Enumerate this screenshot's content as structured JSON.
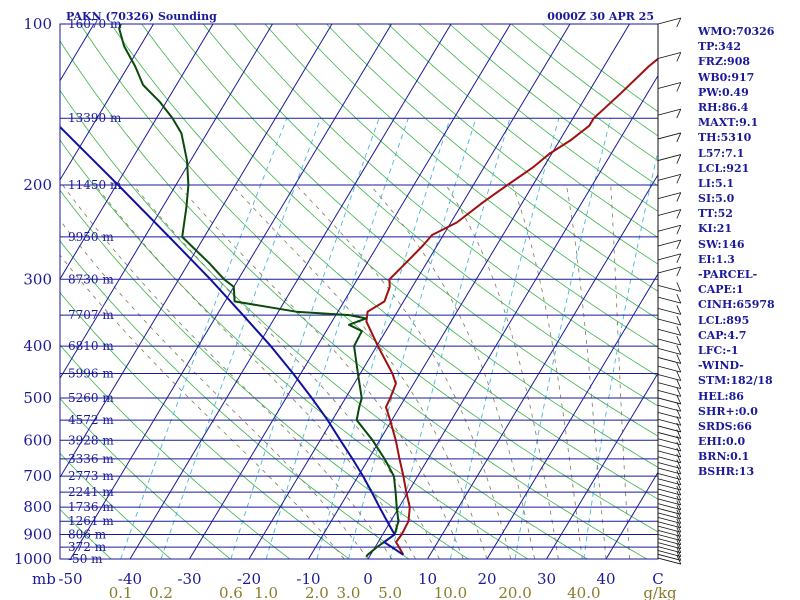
{
  "header": {
    "station": "PAKN (70326) Sounding",
    "time": "0000Z 30 APR 25"
  },
  "stats": [
    "WMO:70326",
    "TP:342",
    "FRZ:908",
    "WB0:917",
    "PW:0.49",
    "RH:86.4",
    "MAXT:9.1",
    "TH:5310",
    "L57:7.1",
    "LCL:921",
    "LI:5.1",
    "SI:5.0",
    "TT:52",
    "KI:21",
    "SW:146",
    "EI:1.3",
    "-PARCEL-",
    "CAPE:1",
    "CINH:65978",
    "LCL:895",
    "CAP:4.7",
    "LFC:-1",
    "-WIND-",
    "STM:182/18",
    "HEL:86",
    "SHR+:0.0",
    "SRDS:66",
    "EHI:0.0",
    "BRN:0.1",
    "BSHR:13"
  ],
  "chart_data": {
    "type": "line",
    "title": "PAKN (70326) Sounding",
    "subtitle": "0000Z 30 APR 25",
    "x_axis": {
      "label": "C",
      "range": [
        -50,
        50
      ],
      "ticks": [
        -50,
        -40,
        -30,
        -20,
        -10,
        0,
        10,
        20,
        30,
        40
      ],
      "tick_labels": [
        "-50",
        "-40",
        "-30",
        "-20",
        "-10",
        "0",
        "10",
        "20",
        "30",
        "40"
      ]
    },
    "y_axis": {
      "label": "mb",
      "scale": "log",
      "range": [
        1000,
        100
      ],
      "ticks": [
        100,
        200,
        300,
        400,
        500,
        600,
        700,
        800,
        900,
        1000
      ],
      "tick_labels": [
        "100",
        "200",
        "300",
        "400",
        "500",
        "600",
        "700",
        "800",
        "900",
        "1000"
      ]
    },
    "mixing_ratio_axis": {
      "unit": "g/kg",
      "ticks": [
        0.1,
        0.2,
        0.6,
        1.0,
        2.0,
        3.0,
        5.0,
        10.0,
        20.0,
        40.0
      ],
      "labels": [
        "0.1",
        "0.2",
        "0.6",
        "1.0",
        "2.0",
        "3.0",
        "5.0",
        "10.0",
        "20.0",
        "40.0"
      ]
    },
    "heights": [
      {
        "p": 100,
        "label": "16070 m"
      },
      {
        "p": 150,
        "label": "13390 m"
      },
      {
        "p": 200,
        "label": "11450 m"
      },
      {
        "p": 250,
        "label": "9950 m"
      },
      {
        "p": 300,
        "label": "8730 m"
      },
      {
        "p": 350,
        "label": "7707 m"
      },
      {
        "p": 400,
        "label": "6810 m"
      },
      {
        "p": 450,
        "label": "5996 m"
      },
      {
        "p": 500,
        "label": "5260 m"
      },
      {
        "p": 550,
        "label": "4572 m"
      },
      {
        "p": 600,
        "label": "3928 m"
      },
      {
        "p": 650,
        "label": "3336 m"
      },
      {
        "p": 700,
        "label": "2773 m"
      },
      {
        "p": 750,
        "label": "2241 m"
      },
      {
        "p": 800,
        "label": "1736 m"
      },
      {
        "p": 850,
        "label": "1261 m"
      },
      {
        "p": 900,
        "label": "806 m"
      },
      {
        "p": 950,
        "label": "372 m"
      },
      {
        "p": 1000,
        "label": "-50 m"
      }
    ],
    "series": [
      {
        "color": "#a01010",
        "points": [
          {
            "p": 982,
            "t": 5.5
          },
          {
            "p": 950,
            "t": 4.0
          },
          {
            "p": 930,
            "t": 3.0
          },
          {
            "p": 900,
            "t": 3.2
          },
          {
            "p": 850,
            "t": 3.0
          },
          {
            "p": 800,
            "t": 1.8
          },
          {
            "p": 750,
            "t": -0.3
          },
          {
            "p": 700,
            "t": -2.4
          },
          {
            "p": 650,
            "t": -4.8
          },
          {
            "p": 600,
            "t": -7.3
          },
          {
            "p": 550,
            "t": -10.3
          },
          {
            "p": 520,
            "t": -12.3
          },
          {
            "p": 500,
            "t": -12.5
          },
          {
            "p": 470,
            "t": -13.0
          },
          {
            "p": 450,
            "t": -14.6
          },
          {
            "p": 400,
            "t": -19.8
          },
          {
            "p": 360,
            "t": -24.2
          },
          {
            "p": 345,
            "t": -25.0
          },
          {
            "p": 330,
            "t": -23.2
          },
          {
            "p": 310,
            "t": -23.8
          },
          {
            "p": 300,
            "t": -24.6
          },
          {
            "p": 280,
            "t": -23.5
          },
          {
            "p": 260,
            "t": -22.4
          },
          {
            "p": 248,
            "t": -21.9
          },
          {
            "p": 235,
            "t": -19.0
          },
          {
            "p": 215,
            "t": -16.6
          },
          {
            "p": 200,
            "t": -14.3
          },
          {
            "p": 185,
            "t": -11.7
          },
          {
            "p": 175,
            "t": -10.4
          },
          {
            "p": 165,
            "t": -8.2
          },
          {
            "p": 155,
            "t": -6.5
          },
          {
            "p": 150,
            "t": -6.5
          },
          {
            "p": 135,
            "t": -4.5
          },
          {
            "p": 120,
            "t": -2.5
          },
          {
            "p": 112,
            "t": -0.8
          },
          {
            "p": 105,
            "t": 2.0
          },
          {
            "p": 100,
            "t": 4.1
          }
        ]
      },
      {
        "color": "#0a4a0a",
        "points": [
          {
            "p": 990,
            "t": -0.5
          },
          {
            "p": 982,
            "t": -0.5
          },
          {
            "p": 950,
            "t": 0.3
          },
          {
            "p": 930,
            "t": 1.0
          },
          {
            "p": 900,
            "t": 2.0
          },
          {
            "p": 850,
            "t": 1.3
          },
          {
            "p": 800,
            "t": -0.4
          },
          {
            "p": 750,
            "t": -2.1
          },
          {
            "p": 700,
            "t": -4.0
          },
          {
            "p": 650,
            "t": -7.3
          },
          {
            "p": 600,
            "t": -11.2
          },
          {
            "p": 550,
            "t": -15.9
          },
          {
            "p": 520,
            "t": -16.8
          },
          {
            "p": 500,
            "t": -17.3
          },
          {
            "p": 450,
            "t": -20.4
          },
          {
            "p": 400,
            "t": -23.8
          },
          {
            "p": 375,
            "t": -24.0
          },
          {
            "p": 365,
            "t": -26.8
          },
          {
            "p": 355,
            "t": -24.6
          },
          {
            "p": 350,
            "t": -27.7
          },
          {
            "p": 345,
            "t": -37.0
          },
          {
            "p": 330,
            "t": -48.4
          },
          {
            "p": 310,
            "t": -50.0
          },
          {
            "p": 300,
            "t": -52.4
          },
          {
            "p": 280,
            "t": -56.5
          },
          {
            "p": 250,
            "t": -63.7
          },
          {
            "p": 220,
            "t": -66.0
          },
          {
            "p": 200,
            "t": -67.9
          },
          {
            "p": 180,
            "t": -70.6
          },
          {
            "p": 160,
            "t": -74.3
          },
          {
            "p": 150,
            "t": -77.3
          },
          {
            "p": 140,
            "t": -81.0
          },
          {
            "p": 130,
            "t": -85.6
          },
          {
            "p": 120,
            "t": -88.8
          },
          {
            "p": 110,
            "t": -92.7
          },
          {
            "p": 102,
            "t": -95.3
          },
          {
            "p": 100,
            "t": -95.5
          }
        ]
      },
      {
        "color": "#1010a0",
        "points": [
          {
            "p": 982,
            "t": 5.5
          },
          {
            "p": 930,
            "t": 1.0
          },
          {
            "p": 900,
            "t": 2.0
          },
          {
            "p": 850,
            "t": -0.6
          },
          {
            "p": 800,
            "t": -3.3
          },
          {
            "p": 750,
            "t": -6.1
          },
          {
            "p": 700,
            "t": -9.2
          },
          {
            "p": 650,
            "t": -12.7
          },
          {
            "p": 600,
            "t": -16.6
          },
          {
            "p": 550,
            "t": -20.8
          },
          {
            "p": 500,
            "t": -25.7
          },
          {
            "p": 450,
            "t": -31.3
          },
          {
            "p": 400,
            "t": -37.8
          },
          {
            "p": 350,
            "t": -45.6
          },
          {
            "p": 300,
            "t": -54.7
          },
          {
            "p": 250,
            "t": -65.9
          },
          {
            "p": 200,
            "t": -79.7
          },
          {
            "p": 150,
            "t": -97.7
          },
          {
            "p": 117,
            "t": -113.4
          }
        ]
      }
    ]
  }
}
